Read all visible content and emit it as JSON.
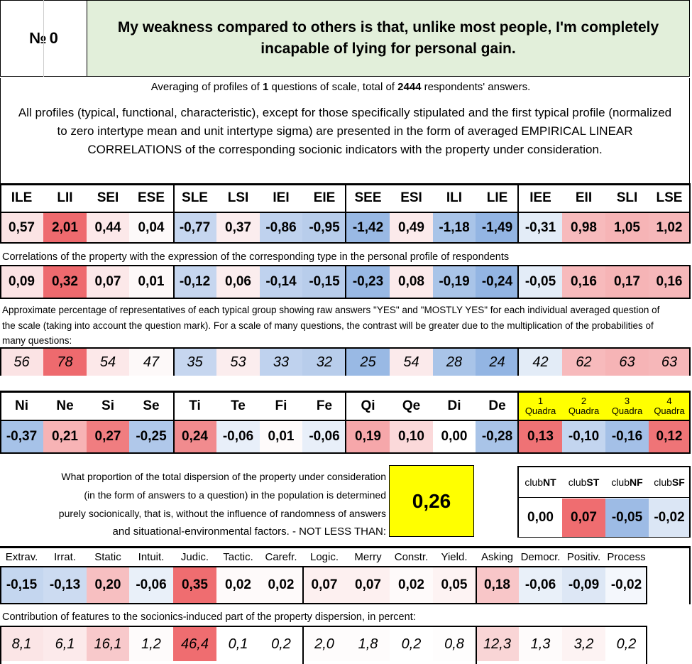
{
  "header": {
    "number_label": "№",
    "number_value": "0",
    "question": "My weakness compared to others is that, unlike most people, I'm completely incapable of lying for personal gain."
  },
  "summary": {
    "prefix": "Averaging of profiles of ",
    "questions": "1",
    "middle": " questions of scale, total of ",
    "respondents": "2444",
    "suffix": " respondents' answers."
  },
  "description": "All profiles (typical, functional, characteristic), except for those specifically stipulated and the first typical profile (normalized to zero intertype mean and unit intertype sigma) are presented in the form of averaged EMPIRICAL LINEAR CORRELATIONS of the corresponding socionic indicators with the property under consideration.",
  "types": [
    "ILE",
    "LII",
    "SEI",
    "ESE",
    "SLE",
    "LSI",
    "IEI",
    "EIE",
    "SEE",
    "ESI",
    "ILI",
    "LIE",
    "IEE",
    "EII",
    "SLI",
    "LSE"
  ],
  "type_values": [
    "0,57",
    "2,01",
    "0,44",
    "0,04",
    "-0,77",
    "0,37",
    "-0,86",
    "-0,95",
    "-1,42",
    "0,49",
    "-1,18",
    "-1,49",
    "-0,31",
    "0,98",
    "1,05",
    "1,02"
  ],
  "type_value_colors": [
    "#fbe3e4",
    "#ee6a6e",
    "#fce8e9",
    "#fdf9f9",
    "#c6d6ef",
    "#fbedee",
    "#bfd2ee",
    "#b8cdeb",
    "#99b9e4",
    "#fbeaeb",
    "#a9c4e8",
    "#93b5e3",
    "#e3ecf7",
    "#f7babc",
    "#f6b4b6",
    "#f6b7b9"
  ],
  "corr_caption": "Correlations of the property with the expression of the corresponding type in the personal profile of respondents",
  "corr_values": [
    "0,09",
    "0,32",
    "0,07",
    "0,01",
    "-0,12",
    "0,06",
    "-0,14",
    "-0,15",
    "-0,23",
    "0,08",
    "-0,19",
    "-0,24",
    "-0,05",
    "0,16",
    "0,17",
    "0,16"
  ],
  "corr_colors": [
    "#fbe3e4",
    "#ee6a6e",
    "#fce8e9",
    "#fdf9f9",
    "#c6d6ef",
    "#fbedee",
    "#bfd2ee",
    "#b8cdeb",
    "#99b9e4",
    "#fbeaeb",
    "#a9c4e8",
    "#93b5e3",
    "#e3ecf7",
    "#f7babc",
    "#f6b4b6",
    "#f6b7b9"
  ],
  "pct_caption": "Approximate percentage of representatives of each typical group showing raw answers \"YES\" and \"MOSTLY YES\" for each individual averaged question of the scale (taking into account the question mark). For a scale of many questions, the contrast will be greater due to the multiplication of the probabilities of many questions:",
  "pct_values": [
    "56",
    "78",
    "54",
    "47",
    "35",
    "53",
    "33",
    "32",
    "25",
    "54",
    "28",
    "24",
    "42",
    "62",
    "63",
    "63"
  ],
  "pct_colors": [
    "#fbe3e4",
    "#ee6a6e",
    "#fce8e9",
    "#fdf9f9",
    "#c6d6ef",
    "#fbedee",
    "#bfd2ee",
    "#b8cdeb",
    "#99b9e4",
    "#fbeaeb",
    "#a9c4e8",
    "#93b5e3",
    "#e3ecf7",
    "#f7babc",
    "#f6b4b6",
    "#f6b7b9"
  ],
  "functions": [
    "Ni",
    "Ne",
    "Si",
    "Se",
    "Ti",
    "Te",
    "Fi",
    "Fe",
    "Qi",
    "Qe",
    "Di",
    "De"
  ],
  "function_values": [
    "-0,37",
    "0,21",
    "0,27",
    "-0,25",
    "0,24",
    "-0,06",
    "0,01",
    "-0,06",
    "0,19",
    "0,10",
    "0,00",
    "-0,28"
  ],
  "function_colors": [
    "#a6c2e8",
    "#f7b3b5",
    "#f07d80",
    "#b0c8ea",
    "#f18b8e",
    "#e8eff9",
    "#fefbfb",
    "#e8eff9",
    "#f6a7aa",
    "#fbd9da",
    "#ffffff",
    "#a9c4e8"
  ],
  "quadras": [
    {
      "num": "1",
      "label": "Quadra",
      "value": "0,13",
      "color": "#ef7275"
    },
    {
      "num": "2",
      "label": "Quadra",
      "value": "-0,10",
      "color": "#c3d5ef"
    },
    {
      "num": "3",
      "label": "Quadra",
      "value": "-0,16",
      "color": "#a4c0e7"
    },
    {
      "num": "4",
      "label": "Quadra",
      "value": "0,12",
      "color": "#ef7477"
    }
  ],
  "dispersion_text": [
    "What proportion of the total dispersion of the property under consideration",
    "(in the form of answers to a question) in the population is determined",
    "purely socionically, that is, without the influence of randomness of answers",
    "and situational-environmental factors. - NOT LESS THAN:"
  ],
  "dispersion_value": "0,26",
  "clubs": [
    {
      "prefix": "club",
      "suffix": "NT",
      "value": "0,00",
      "color": "#ffffff"
    },
    {
      "prefix": "club",
      "suffix": "ST",
      "value": "0,07",
      "color": "#ef6d70"
    },
    {
      "prefix": "club",
      "suffix": "NF",
      "value": "-0,05",
      "color": "#9dbbe5"
    },
    {
      "prefix": "club",
      "suffix": "SF",
      "value": "-0,02",
      "color": "#dbe6f5"
    }
  ],
  "traits": [
    "Extrav.",
    "Irrat.",
    "Static",
    "Intuit.",
    "Judic.",
    "Tactic.",
    "Carefr.",
    "Logic.",
    "Merry",
    "Constr.",
    "Yield.",
    "Asking",
    "Democr.",
    "Positiv.",
    "Process"
  ],
  "trait_values": [
    "-0,15",
    "-0,13",
    "0,20",
    "-0,06",
    "0,35",
    "0,02",
    "0,02",
    "0,07",
    "0,07",
    "0,02",
    "0,05",
    "0,18",
    "-0,06",
    "-0,09",
    "-0,02"
  ],
  "trait_colors": [
    "#c4d6ef",
    "#ccdbf1",
    "#f7bfc1",
    "#e9f0f9",
    "#ef6d70",
    "#fefafa",
    "#fefafa",
    "#fdf0f0",
    "#fdf0f0",
    "#fefafa",
    "#fdf3f3",
    "#f8c6c8",
    "#e9f0f9",
    "#dde7f5",
    "#f4f7fc"
  ],
  "contrib_caption": "Contribution of features to the sociоnics-induced part of the property dispersion, in percent:",
  "contrib_values": [
    "8,1",
    "6,1",
    "16,1",
    "1,2",
    "46,4",
    "0,1",
    "0,2",
    "2,0",
    "1,8",
    "0,2",
    "0,8",
    "12,3",
    "1,3",
    "3,2",
    "0,2"
  ],
  "contrib_colors": [
    "#fbe5e6",
    "#fceaeb",
    "#f8c9cb",
    "#fefbfb",
    "#ef6d70",
    "#ffffff",
    "#ffffff",
    "#fefcfc",
    "#fefcfc",
    "#ffffff",
    "#fefdfd",
    "#f9d5d6",
    "#fefbfb",
    "#fdf3f3",
    "#ffffff"
  ],
  "colors": {
    "header_bg": "#e2efda",
    "yellow": "#ffff00",
    "border": "#000000"
  }
}
